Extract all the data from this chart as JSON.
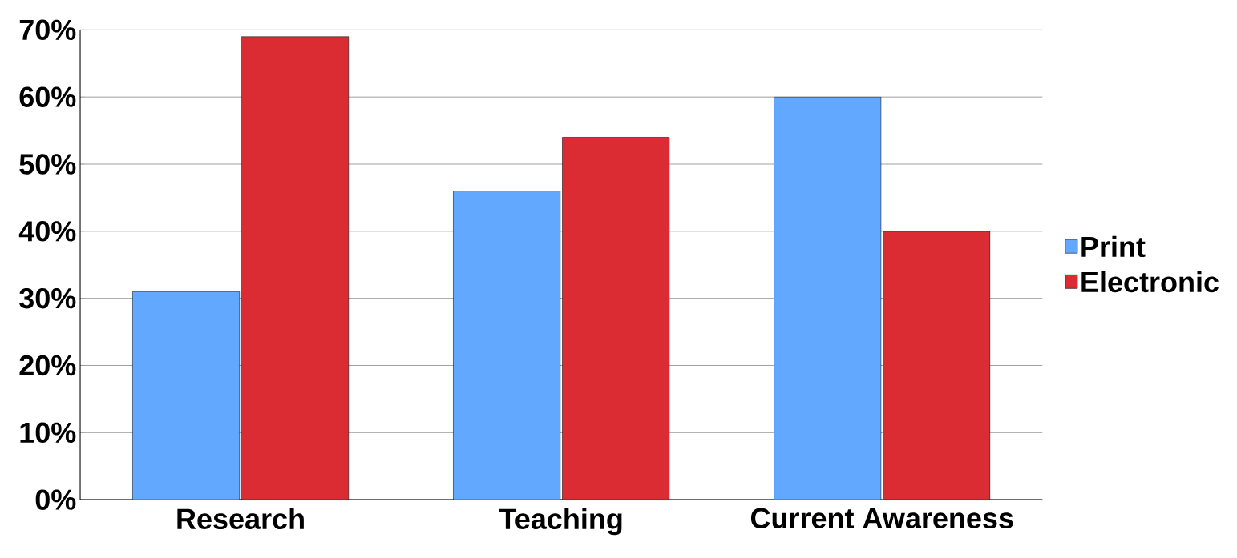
{
  "chart_data": {
    "type": "bar",
    "categories": [
      "Research",
      "Teaching",
      "Current Awareness"
    ],
    "series": [
      {
        "name": "Print",
        "color": "#62a8fe",
        "values": [
          31,
          46,
          60
        ]
      },
      {
        "name": "Electronic",
        "color": "#db2b33",
        "values": [
          69,
          54,
          40
        ]
      }
    ],
    "ylim": [
      0,
      70
    ],
    "yticks": [
      {
        "value": 0,
        "label": "0%"
      },
      {
        "value": 10,
        "label": "10%"
      },
      {
        "value": 20,
        "label": "20%"
      },
      {
        "value": 30,
        "label": "30%"
      },
      {
        "value": 40,
        "label": "40%"
      },
      {
        "value": 50,
        "label": "50%"
      },
      {
        "value": 60,
        "label": "60%"
      },
      {
        "value": 70,
        "label": "70%"
      }
    ],
    "grid": "y",
    "legend": "right"
  }
}
